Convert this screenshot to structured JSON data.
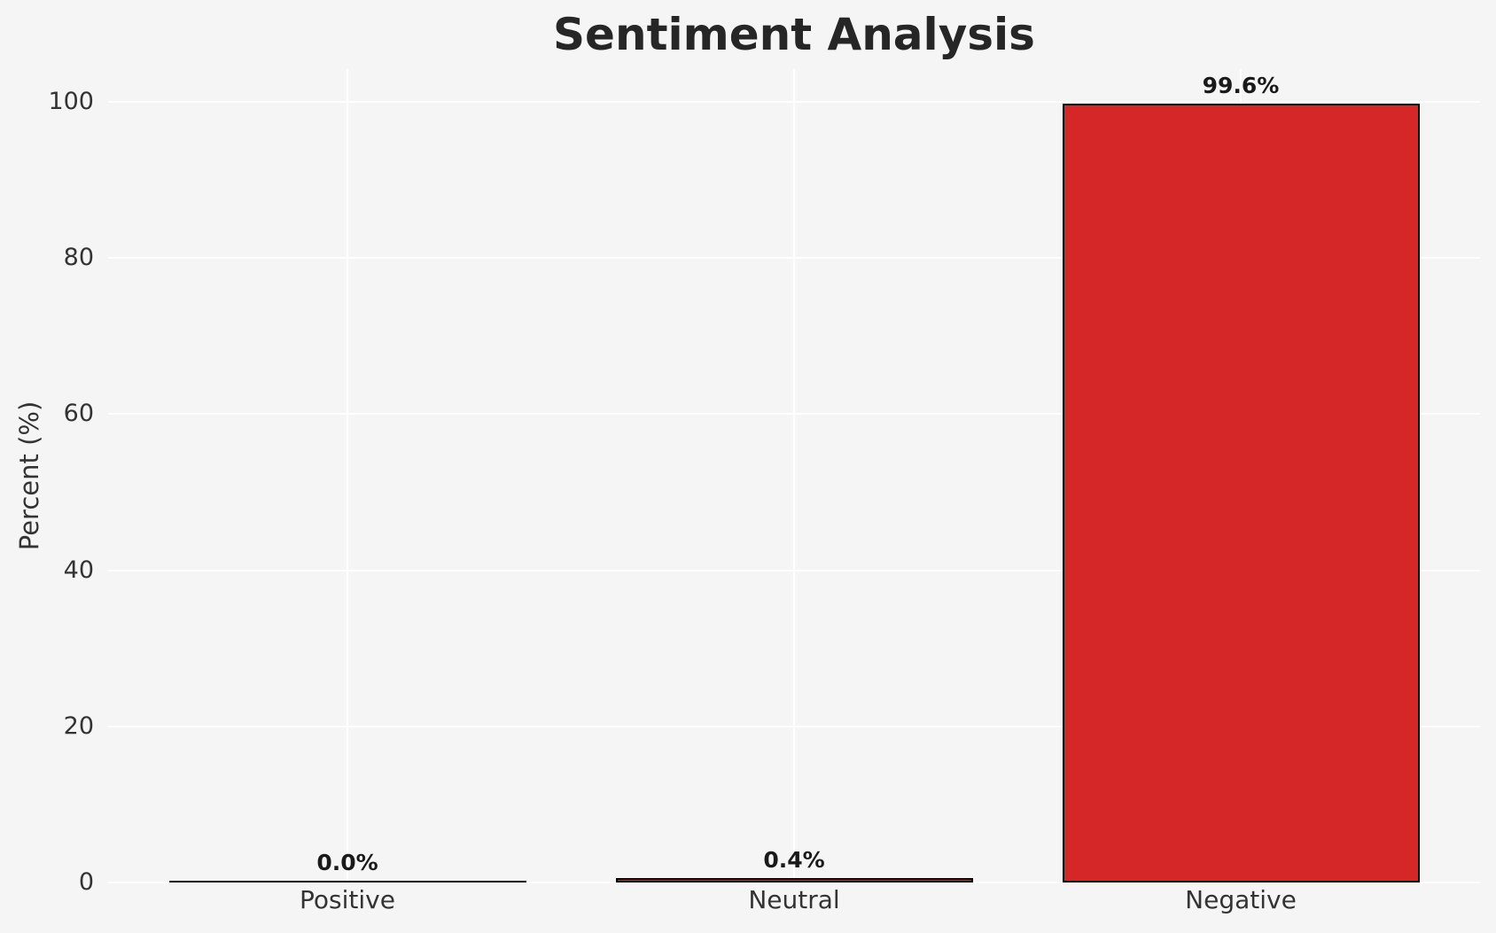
{
  "chart_data": {
    "type": "bar",
    "title": "Sentiment Analysis",
    "xlabel": "",
    "ylabel": "Percent (%)",
    "categories": [
      "Positive",
      "Neutral",
      "Negative"
    ],
    "values": [
      0.0,
      0.4,
      99.6
    ],
    "bar_labels": [
      "0.0%",
      "0.4%",
      "99.6%"
    ],
    "yticks": [
      0,
      20,
      40,
      60,
      80,
      100
    ],
    "ylim": [
      0,
      104.2
    ],
    "legend": "none",
    "grid": "white horizontal and vertical gridlines",
    "colors": {
      "bar_fill": "#d62728",
      "bar_edge": "#000000",
      "background": "#f5f5f6",
      "gridline": "#ffffff",
      "title_text": "#262626",
      "tick_text": "#333333",
      "value_label_text": "#1a1a1a"
    }
  }
}
